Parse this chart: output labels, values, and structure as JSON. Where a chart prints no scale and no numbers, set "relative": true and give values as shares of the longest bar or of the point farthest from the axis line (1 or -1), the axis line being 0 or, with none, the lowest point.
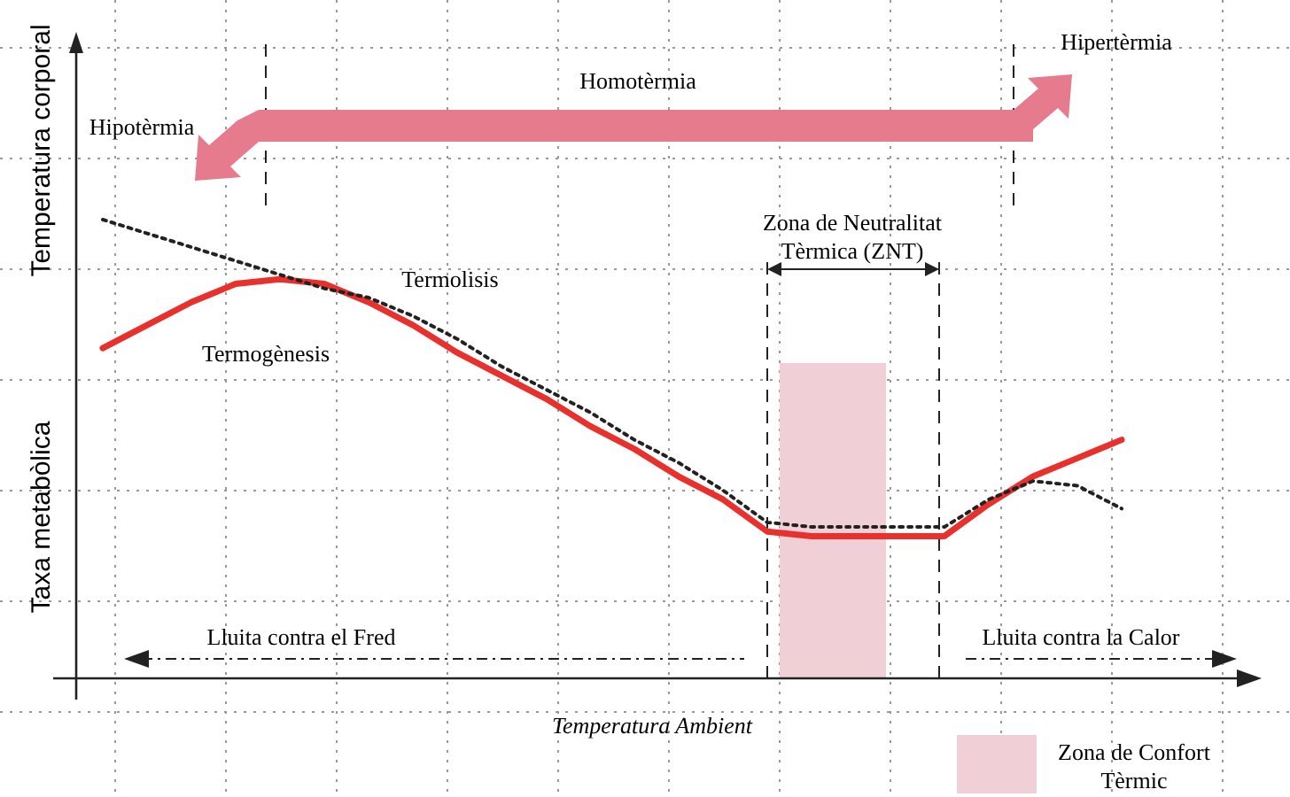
{
  "chart_data": {
    "type": "line",
    "relative": true,
    "xlabel": "Temperatura Ambient",
    "ylabel": "Taxa metabòlica",
    "categories": [
      null,
      null,
      null,
      null,
      null,
      null,
      null,
      null,
      null,
      null,
      null,
      null,
      null,
      null,
      null,
      null,
      null,
      null,
      null,
      null,
      null,
      null,
      null,
      null
    ],
    "grid": true,
    "series": [
      {
        "name": "Termogènesis",
        "color": "#e8302c",
        "line_style": "solid",
        "values": [
          0.72,
          0.77,
          0.82,
          0.86,
          0.87,
          0.86,
          0.82,
          0.77,
          0.71,
          0.66,
          0.61,
          0.55,
          0.5,
          0.44,
          0.39,
          0.32,
          0.31,
          0.31,
          0.31,
          0.31,
          0.38,
          0.44,
          0.48,
          0.52
        ]
      },
      {
        "name": "Termolisis",
        "color": "#222222",
        "line_style": "dotted",
        "values": [
          1,
          0.97,
          0.94,
          0.91,
          0.88,
          0.85,
          0.83,
          0.79,
          0.74,
          0.68,
          0.63,
          0.58,
          0.52,
          0.47,
          0.41,
          0.34,
          0.33,
          0.33,
          0.33,
          0.33,
          0.39,
          0.43,
          0.42,
          0.37
        ]
      }
    ],
    "annotations": [
      "Homotèrmia",
      "Hipotèrmia",
      "Hipertèrmia",
      "Lluita contra el Fred",
      "Lluita contra la Calor",
      "Temperatura corporal",
      "Zona de Neutralitat Tèrmica (ZNT)",
      "Zona de Confort Tèrmic"
    ]
  }
}
